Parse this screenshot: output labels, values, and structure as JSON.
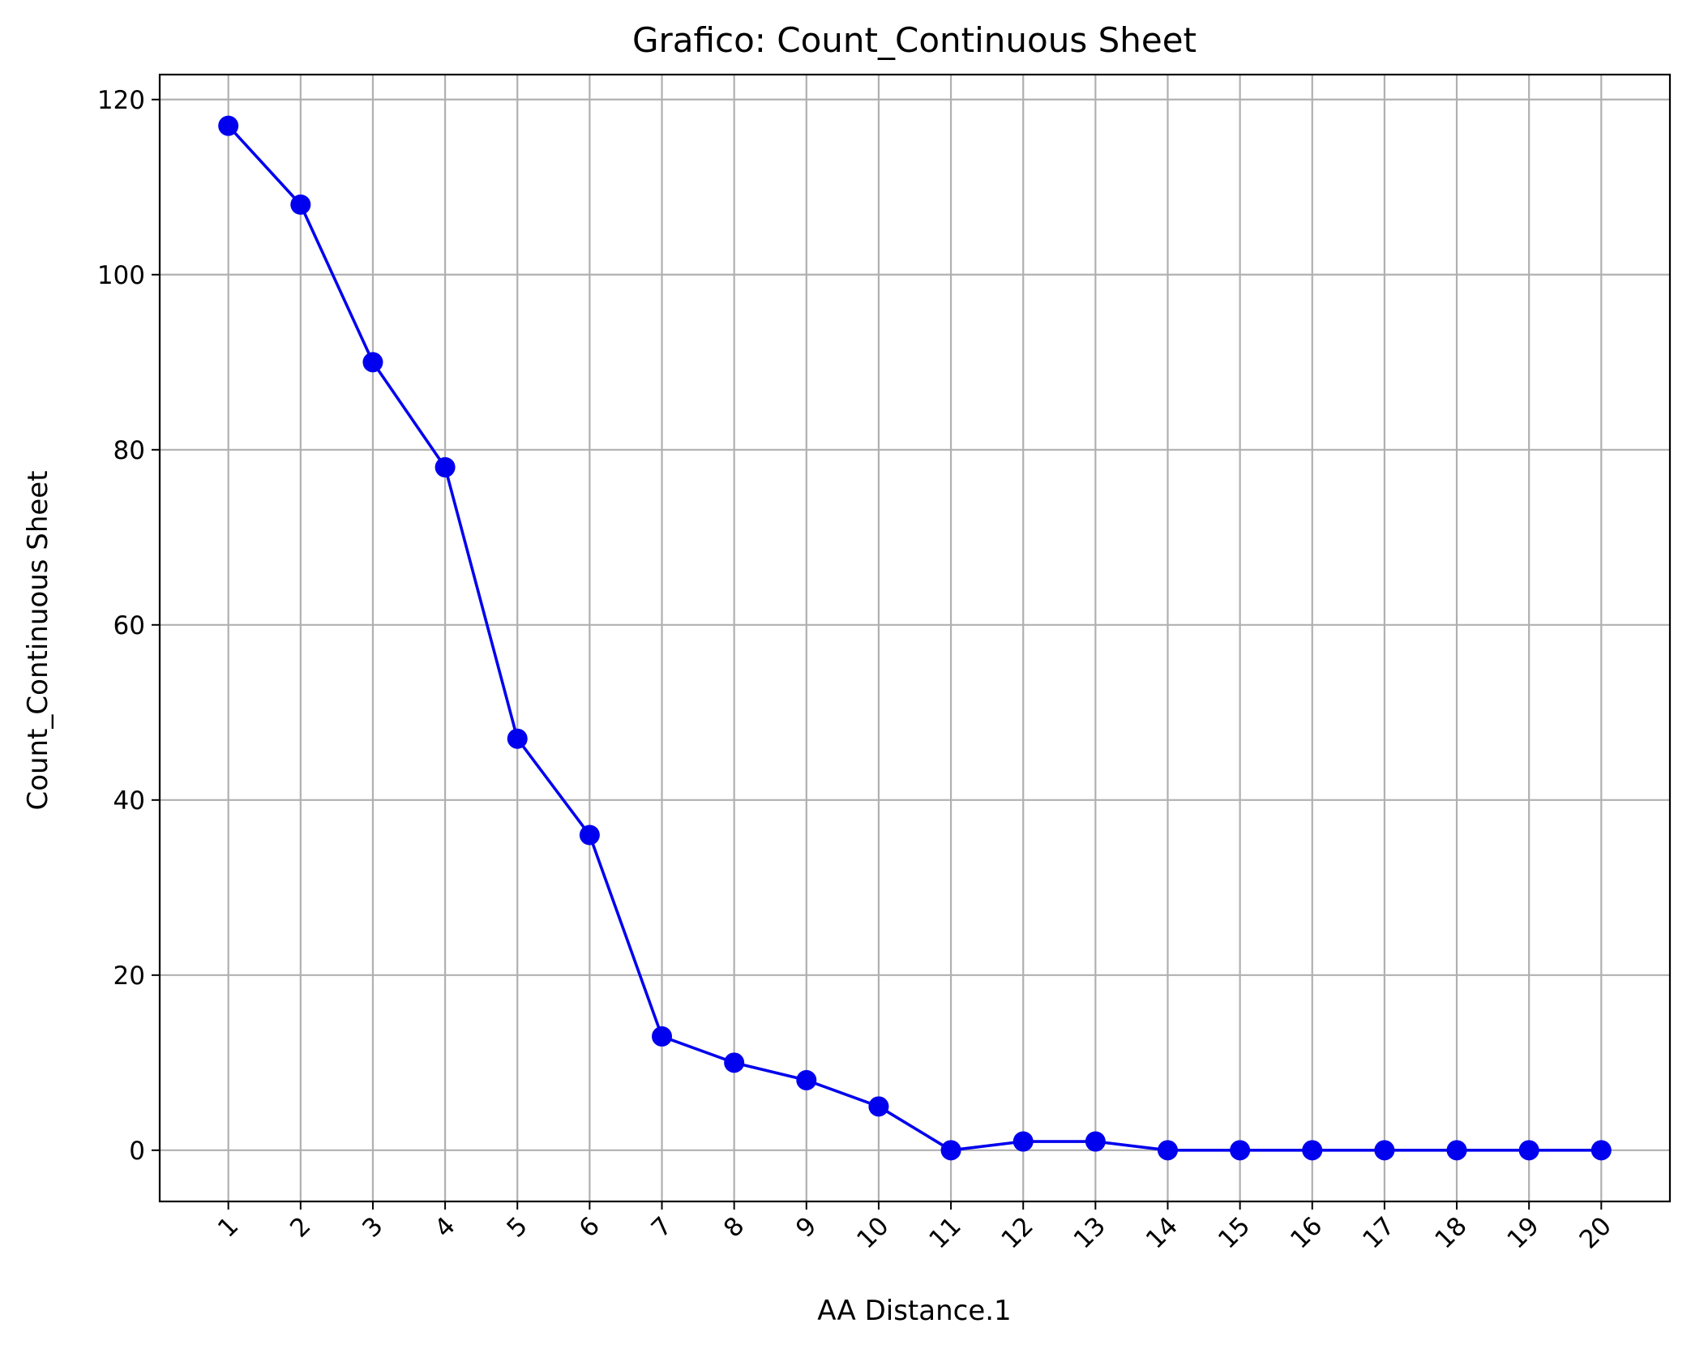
{
  "chart_data": {
    "type": "line",
    "title": "Grafico: Count_Continuous Sheet",
    "xlabel": "AA Distance.1",
    "ylabel": "Count_Continuous Sheet",
    "x": [
      1,
      2,
      3,
      4,
      5,
      6,
      7,
      8,
      9,
      10,
      11,
      12,
      13,
      14,
      15,
      16,
      17,
      18,
      19,
      20
    ],
    "x_tick_labels": [
      "1",
      "2",
      "3",
      "4",
      "5",
      "6",
      "7",
      "8",
      "9",
      "10",
      "11",
      "12",
      "13",
      "14",
      "15",
      "16",
      "17",
      "18",
      "19",
      "20"
    ],
    "series": [
      {
        "values": [
          117,
          108,
          90,
          78,
          47,
          36,
          13,
          10,
          8,
          5,
          0,
          1,
          1,
          0,
          0,
          0,
          0,
          0,
          0,
          0
        ],
        "color": "#0000ee",
        "marker": "circle"
      }
    ],
    "y_ticks": [
      0,
      20,
      40,
      60,
      80,
      100,
      120
    ],
    "y_tick_labels": [
      "0",
      "20",
      "40",
      "60",
      "80",
      "100",
      "120"
    ],
    "xlim": [
      0.05,
      20.95
    ],
    "ylim": [
      -5.85,
      122.85
    ],
    "grid": true,
    "x_tick_rotation": "45 degrees"
  }
}
